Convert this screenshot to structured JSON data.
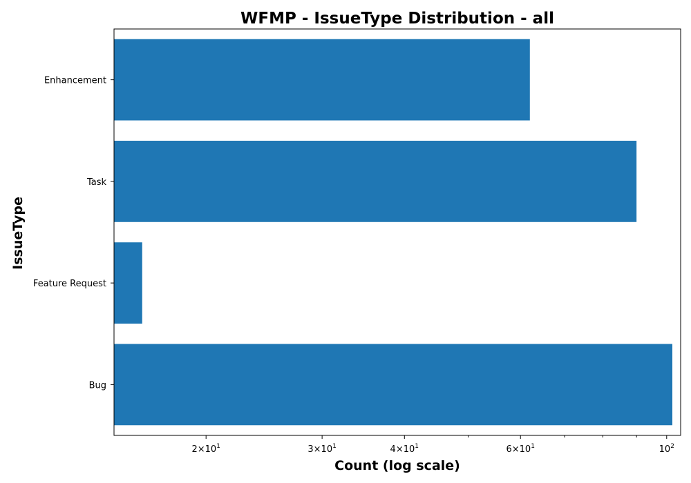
{
  "chart_data": {
    "type": "bar",
    "orientation": "horizontal",
    "title": "WFMP - IssueType Distribution - all",
    "xlabel": "Count (log scale)",
    "ylabel": "IssueType",
    "x_scale": "log",
    "xlim": [
      14.5,
      105
    ],
    "x_ticks": [
      {
        "value": 20,
        "mantissa": "2",
        "base": "10",
        "exp": "1"
      },
      {
        "value": 30,
        "mantissa": "3",
        "base": "10",
        "exp": "1"
      },
      {
        "value": 40,
        "mantissa": "4",
        "base": "10",
        "exp": "1"
      },
      {
        "value": 60,
        "mantissa": "6",
        "base": "10",
        "exp": "1"
      },
      {
        "value": 100,
        "mantissa": "",
        "base": "10",
        "exp": "2"
      }
    ],
    "x_minor_ticks": [
      50,
      70,
      80,
      90
    ],
    "categories": [
      "Enhancement",
      "Task",
      "Feature Request",
      "Bug"
    ],
    "values": [
      62,
      90,
      16,
      102
    ],
    "bar_color": "#1f77b4",
    "grid": false,
    "legend": "none"
  }
}
